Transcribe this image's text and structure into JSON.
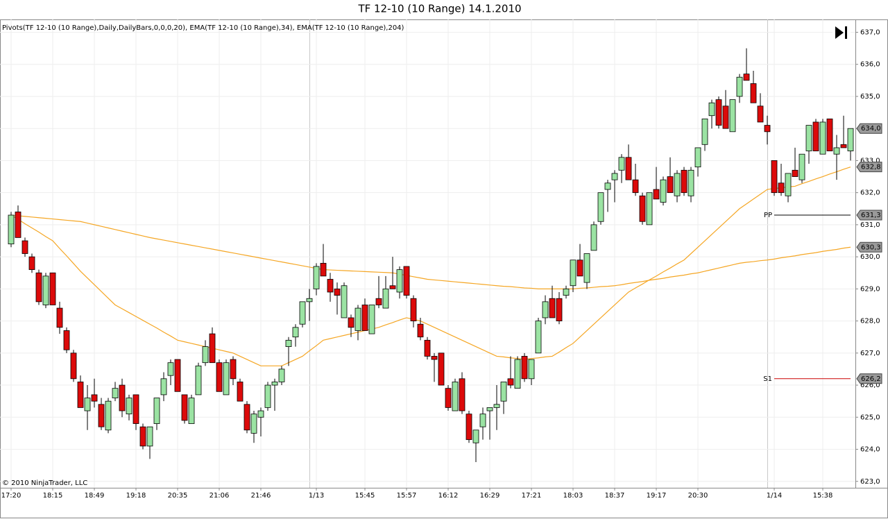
{
  "title": "TF 12-10 (10 Range)  14.1.2010",
  "chart_data": {
    "type": "candlestick",
    "indicator_label": "Pivots(TF 12-10 (10 Range),Daily,DailyBars,0,0,0,20), EMA(TF 12-10 (10 Range),34), EMA(TF 12-10 (10 Range),204)",
    "copyright": "© 2010 NinjaTrader, LLC",
    "categories": [
      "17:20",
      null,
      null,
      null,
      null,
      null,
      "18:15",
      null,
      null,
      null,
      null,
      null,
      "18:49",
      null,
      null,
      null,
      null,
      null,
      "19:18",
      null,
      null,
      null,
      null,
      null,
      "20:35",
      null,
      null,
      null,
      null,
      null,
      "21:06",
      null,
      null,
      null,
      null,
      null,
      "21:46",
      null,
      null,
      null,
      null,
      null,
      null,
      null,
      "1/13",
      null,
      null,
      null,
      null,
      null,
      null,
      "15:45",
      null,
      null,
      null,
      null,
      null,
      "15:57",
      null,
      null,
      null,
      null,
      null,
      "16:12",
      null,
      null,
      null,
      null,
      null,
      "16:29",
      null,
      null,
      null,
      null,
      null,
      "17:21",
      null,
      null,
      null,
      null,
      null,
      "18:03",
      null,
      null,
      null,
      null,
      null,
      "18:37",
      null,
      null,
      null,
      null,
      null,
      "19:17",
      null,
      null,
      null,
      null,
      null,
      "20:30",
      null,
      null,
      null,
      null,
      null,
      null,
      null,
      null,
      null,
      null,
      "1/14",
      null,
      null,
      null,
      null,
      null,
      null,
      "15:38",
      null,
      null,
      null,
      null
    ],
    "candles": {
      "open": [
        630.4,
        631.4,
        630.5,
        630.0,
        629.5,
        628.5,
        629.5,
        628.4,
        627.7,
        627.0,
        626.1,
        625.2,
        625.7,
        625.4,
        624.6,
        625.6,
        626.0,
        625.1,
        625.7,
        624.7,
        624.1,
        624.8,
        625.7,
        626.3,
        626.8,
        625.7,
        624.8,
        625.7,
        626.7,
        627.6,
        626.7,
        625.7,
        626.8,
        626.1,
        625.4,
        624.5,
        625.0,
        625.3,
        626.0,
        626.1,
        627.2,
        627.5,
        627.9,
        628.6,
        629.0,
        629.8,
        629.3,
        629.0,
        628.1,
        628.1,
        627.7,
        628.5,
        627.6,
        628.7,
        628.4,
        629.1,
        628.9,
        629.7,
        628.7,
        627.9,
        627.4,
        626.9,
        627.0,
        625.9,
        625.2,
        626.2,
        625.1,
        624.2,
        624.7,
        625.2,
        625.3,
        625.5,
        626.2,
        625.9,
        626.9,
        626.2,
        627.0,
        628.1,
        628.7,
        628.7,
        628.8,
        629.1,
        629.9,
        629.2,
        630.2,
        631.1,
        632.1,
        632.4,
        632.7,
        633.1,
        632.4,
        631.9,
        631.0,
        632.1,
        631.7,
        632.5,
        631.9,
        632.7,
        631.9,
        632.8,
        633.5,
        634.4,
        634.9,
        634.7,
        633.9,
        635.0,
        635.7,
        635.4,
        634.7,
        634.1,
        633.0,
        632.3,
        631.9,
        632.7,
        632.4,
        633.3,
        634.2,
        633.2,
        634.3,
        633.2,
        633.5,
        633.3
      ],
      "high": [
        631.4,
        631.6,
        630.6,
        630.1,
        629.6,
        629.5,
        629.5,
        628.6,
        627.8,
        627.1,
        626.3,
        626.0,
        626.2,
        625.6,
        625.6,
        626.1,
        626.2,
        625.7,
        625.7,
        624.8,
        624.7,
        625.6,
        626.4,
        626.8,
        626.8,
        625.7,
        625.7,
        626.7,
        627.4,
        627.8,
        626.8,
        626.8,
        626.9,
        626.2,
        625.5,
        625.2,
        625.3,
        626.1,
        626.2,
        626.6,
        627.5,
        627.9,
        628.6,
        629.0,
        629.8,
        630.4,
        629.5,
        629.2,
        629.2,
        628.2,
        628.5,
        628.7,
        628.5,
        629.4,
        629.4,
        630.0,
        629.7,
        629.7,
        628.8,
        628.1,
        627.5,
        627.0,
        627.0,
        626.0,
        626.2,
        626.4,
        625.2,
        624.6,
        625.3,
        625.3,
        626.0,
        626.1,
        626.9,
        626.9,
        627.0,
        626.8,
        628.1,
        628.8,
        629.1,
        628.9,
        629.1,
        629.9,
        630.4,
        630.1,
        631.1,
        632.0,
        632.4,
        632.7,
        633.2,
        633.5,
        632.9,
        632.0,
        632.0,
        632.8,
        632.5,
        633.1,
        632.7,
        632.8,
        632.8,
        633.4,
        634.3,
        634.9,
        635.0,
        635.2,
        634.9,
        635.7,
        636.5,
        635.8,
        635.1,
        634.4,
        633.0,
        632.9,
        632.6,
        633.4,
        633.2,
        634.1,
        634.3,
        634.3,
        634.3,
        633.8,
        634.4,
        634.0
      ],
      "low": [
        630.3,
        630.6,
        630.0,
        629.5,
        628.5,
        628.4,
        628.5,
        627.6,
        627.0,
        626.1,
        625.3,
        624.6,
        625.3,
        624.6,
        624.5,
        625.5,
        625.0,
        624.9,
        624.6,
        624.0,
        623.7,
        624.6,
        625.5,
        626.0,
        625.8,
        624.8,
        624.8,
        625.7,
        626.6,
        626.7,
        625.8,
        625.7,
        626.0,
        625.5,
        624.5,
        624.2,
        624.4,
        625.2,
        625.2,
        626.0,
        626.6,
        627.2,
        627.8,
        628.0,
        628.8,
        629.4,
        628.6,
        628.2,
        628.1,
        627.5,
        627.4,
        627.7,
        627.6,
        628.4,
        628.4,
        629.0,
        628.7,
        628.7,
        627.8,
        627.4,
        626.8,
        626.1,
        626.0,
        625.2,
        625.2,
        625.1,
        624.2,
        623.6,
        624.3,
        624.3,
        624.6,
        625.1,
        625.9,
        625.9,
        626.1,
        626.0,
        627.0,
        627.9,
        628.1,
        627.9,
        628.7,
        628.9,
        629.4,
        629.0,
        630.2,
        631.0,
        631.4,
        631.7,
        632.3,
        632.4,
        631.9,
        631.0,
        631.0,
        631.8,
        631.6,
        632.0,
        631.7,
        631.9,
        631.7,
        632.5,
        633.3,
        634.0,
        634.0,
        634.0,
        633.9,
        634.8,
        635.5,
        634.8,
        634.2,
        633.5,
        631.9,
        631.9,
        631.7,
        632.5,
        632.3,
        632.9,
        633.3,
        633.2,
        633.3,
        632.4,
        633.4,
        633.0
      ],
      "close": [
        631.3,
        630.6,
        630.1,
        629.6,
        628.6,
        629.4,
        628.5,
        627.8,
        627.1,
        626.2,
        625.3,
        625.6,
        625.5,
        624.7,
        625.5,
        625.9,
        625.2,
        625.6,
        624.8,
        624.1,
        624.7,
        625.6,
        626.2,
        626.7,
        625.8,
        624.9,
        625.6,
        626.6,
        627.2,
        626.7,
        625.8,
        626.7,
        626.2,
        625.5,
        624.6,
        625.1,
        625.2,
        626.0,
        626.1,
        626.5,
        627.4,
        627.8,
        628.6,
        628.7,
        629.7,
        629.4,
        628.9,
        628.8,
        629.1,
        627.8,
        628.4,
        627.7,
        628.5,
        628.5,
        629.0,
        629.0,
        629.6,
        628.8,
        628.0,
        627.5,
        626.9,
        626.8,
        626.0,
        625.3,
        626.1,
        625.2,
        624.3,
        624.6,
        625.1,
        625.3,
        625.4,
        626.1,
        626.0,
        626.8,
        626.2,
        626.8,
        628.0,
        628.6,
        628.1,
        628.0,
        629.0,
        629.9,
        629.4,
        630.1,
        631.0,
        632.0,
        632.3,
        632.6,
        633.1,
        632.4,
        632.0,
        631.1,
        632.0,
        631.8,
        632.4,
        632.0,
        632.6,
        632.0,
        632.7,
        633.4,
        634.3,
        634.8,
        634.1,
        634.0,
        634.9,
        635.6,
        635.5,
        634.8,
        634.2,
        633.9,
        632.0,
        632.0,
        632.6,
        632.5,
        633.2,
        634.1,
        633.3,
        634.2,
        633.3,
        633.4,
        633.4,
        634.0
      ],
      "up_color": "#9be3a3",
      "down_color": "#dc0a0a",
      "last_label": "634,0"
    },
    "series": [
      {
        "color": "#f5a623",
        "last_label": "632,8",
        "values": [
          631.3,
          631.17,
          631.03,
          630.9,
          630.77,
          630.63,
          630.5,
          630.26,
          630.03,
          629.79,
          629.55,
          629.34,
          629.13,
          628.92,
          628.71,
          628.5,
          628.38,
          628.26,
          628.14,
          628.02,
          627.9,
          627.78,
          627.65,
          627.53,
          627.4,
          627.35,
          627.3,
          627.25,
          627.2,
          627.15,
          627.1,
          627.05,
          627.0,
          626.9,
          626.8,
          626.7,
          626.6,
          626.6,
          626.6,
          626.6,
          626.7,
          626.8,
          626.9,
          627.07,
          627.23,
          627.4,
          627.45,
          627.5,
          627.55,
          627.6,
          627.65,
          627.7,
          627.75,
          627.8,
          627.88,
          627.95,
          628.03,
          628.1,
          628.05,
          628.0,
          627.9,
          627.8,
          627.7,
          627.6,
          627.5,
          627.4,
          627.3,
          627.2,
          627.1,
          627.0,
          626.9,
          626.88,
          626.85,
          626.83,
          626.8,
          626.83,
          626.85,
          626.88,
          626.9,
          627.03,
          627.17,
          627.3,
          627.5,
          627.7,
          627.9,
          628.1,
          628.3,
          628.5,
          628.7,
          628.9,
          629.03,
          629.15,
          629.28,
          629.4,
          629.53,
          629.65,
          629.78,
          629.9,
          630.1,
          630.3,
          630.5,
          630.7,
          630.9,
          631.1,
          631.3,
          631.5,
          631.65,
          631.8,
          631.95,
          632.1,
          632.13,
          632.15,
          632.18,
          632.2,
          632.28,
          632.35,
          632.43,
          632.5,
          632.58,
          632.65,
          632.73,
          632.8
        ]
      },
      {
        "color": "#f5a623",
        "last_label": "630,3",
        "values": [
          631.3,
          631.28,
          631.26,
          631.24,
          631.22,
          631.2,
          631.18,
          631.16,
          631.14,
          631.12,
          631.1,
          631.05,
          631.0,
          630.95,
          630.9,
          630.85,
          630.8,
          630.75,
          630.7,
          630.65,
          630.6,
          630.56,
          630.52,
          630.48,
          630.44,
          630.4,
          630.36,
          630.32,
          630.28,
          630.24,
          630.2,
          630.16,
          630.12,
          630.08,
          630.04,
          630.0,
          629.96,
          629.92,
          629.88,
          629.84,
          629.8,
          629.76,
          629.72,
          629.68,
          629.64,
          629.6,
          629.59,
          629.58,
          629.57,
          629.56,
          629.55,
          629.54,
          629.53,
          629.52,
          629.51,
          629.5,
          629.46,
          629.42,
          629.38,
          629.34,
          629.3,
          629.28,
          629.26,
          629.24,
          629.22,
          629.2,
          629.18,
          629.16,
          629.14,
          629.12,
          629.1,
          629.08,
          629.07,
          629.05,
          629.03,
          629.02,
          629.0,
          629.0,
          629.0,
          629.0,
          629.0,
          629.0,
          629.02,
          629.03,
          629.05,
          629.07,
          629.08,
          629.1,
          629.13,
          629.17,
          629.2,
          629.23,
          629.27,
          629.3,
          629.33,
          629.37,
          629.4,
          629.43,
          629.47,
          629.5,
          629.55,
          629.6,
          629.65,
          629.7,
          629.75,
          629.8,
          629.83,
          629.85,
          629.88,
          629.9,
          629.93,
          629.97,
          630.0,
          630.03,
          630.07,
          630.1,
          630.13,
          630.17,
          630.2,
          630.23,
          630.27,
          630.3
        ]
      }
    ],
    "pivots": [
      {
        "name": "PP",
        "value": 631.3,
        "label": "631,3",
        "color": "#000000"
      },
      {
        "name": "S1",
        "value": 626.2,
        "label": "626,2",
        "color": "#cc0000"
      }
    ],
    "ylim": [
      622.8,
      637.4
    ],
    "yticks": [
      {
        "value": 623,
        "label": "623,0"
      },
      {
        "value": 624,
        "label": "624,0"
      },
      {
        "value": 625,
        "label": "625,0"
      },
      {
        "value": 626,
        "label": "626,0"
      },
      {
        "value": 627,
        "label": "627,0"
      },
      {
        "value": 628,
        "label": "628,0"
      },
      {
        "value": 629,
        "label": "629,0"
      },
      {
        "value": 630,
        "label": "630,0"
      },
      {
        "value": 631,
        "label": "631,0"
      },
      {
        "value": 632,
        "label": "632,0"
      },
      {
        "value": 633,
        "label": "633,0"
      },
      {
        "value": 634,
        "label": "634,0"
      },
      {
        "value": 635,
        "label": "635,0"
      },
      {
        "value": 636,
        "label": "636,0"
      },
      {
        "value": 637,
        "label": "637,0"
      }
    ],
    "grid": true
  }
}
